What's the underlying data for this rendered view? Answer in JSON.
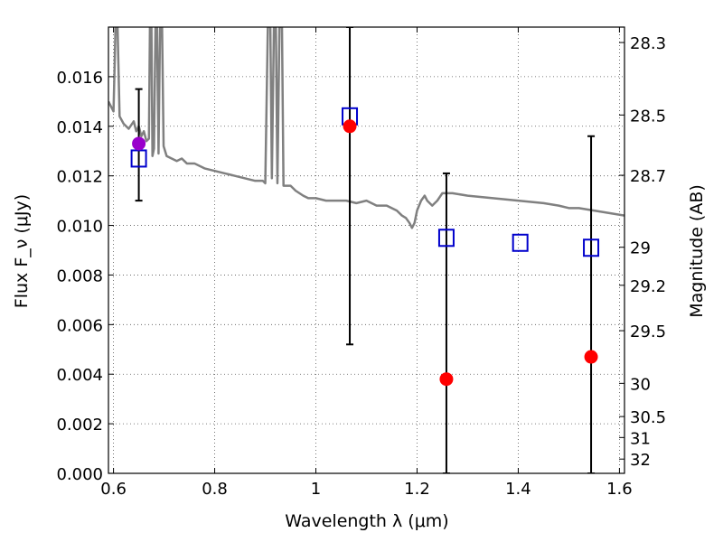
{
  "chart_data": {
    "type": "scatter",
    "xlabel": "Wavelength λ (μm)",
    "ylabel": "Flux F_ν (μJy)",
    "y2label": "Magnitude (AB)",
    "xlim": [
      0.59,
      1.61
    ],
    "ylim": [
      0.0,
      0.018
    ],
    "grid": true,
    "x_ticks": [
      {
        "value": 0.6,
        "label": "0.6"
      },
      {
        "value": 0.8,
        "label": "0.8"
      },
      {
        "value": 1.0,
        "label": "1"
      },
      {
        "value": 1.2,
        "label": "1.2"
      },
      {
        "value": 1.4,
        "label": "1.4"
      },
      {
        "value": 1.6,
        "label": "1.6"
      }
    ],
    "y_ticks": [
      {
        "value": 0.0,
        "label": "0.000"
      },
      {
        "value": 0.002,
        "label": "0.002"
      },
      {
        "value": 0.004,
        "label": "0.004"
      },
      {
        "value": 0.006,
        "label": "0.006"
      },
      {
        "value": 0.008,
        "label": "0.008"
      },
      {
        "value": 0.01,
        "label": "0.010"
      },
      {
        "value": 0.012,
        "label": "0.012"
      },
      {
        "value": 0.014,
        "label": "0.014"
      },
      {
        "value": 0.016,
        "label": "0.016"
      }
    ],
    "y2_ticks": [
      {
        "value": 28.3,
        "label": "28.3"
      },
      {
        "value": 28.5,
        "label": "28.5"
      },
      {
        "value": 28.7,
        "label": "28.7"
      },
      {
        "value": 29.0,
        "label": "29"
      },
      {
        "value": 29.2,
        "label": "29.2"
      },
      {
        "value": 29.5,
        "label": "29.5"
      },
      {
        "value": 30.0,
        "label": "30"
      },
      {
        "value": 30.5,
        "label": "30.5"
      },
      {
        "value": 31.0,
        "label": "31"
      },
      {
        "value": 32.0,
        "label": "32"
      }
    ],
    "sed_model": [
      [
        0.59,
        0.015
      ],
      [
        0.6,
        0.0146
      ],
      [
        0.604,
        0.018
      ],
      [
        0.608,
        0.018
      ],
      [
        0.612,
        0.0144
      ],
      [
        0.62,
        0.0141
      ],
      [
        0.63,
        0.0139
      ],
      [
        0.64,
        0.0142
      ],
      [
        0.645,
        0.0138
      ],
      [
        0.65,
        0.014
      ],
      [
        0.655,
        0.0136
      ],
      [
        0.66,
        0.0138
      ],
      [
        0.665,
        0.0134
      ],
      [
        0.67,
        0.0135
      ],
      [
        0.672,
        0.018
      ],
      [
        0.675,
        0.018
      ],
      [
        0.677,
        0.0128
      ],
      [
        0.68,
        0.0131
      ],
      [
        0.683,
        0.018
      ],
      [
        0.686,
        0.018
      ],
      [
        0.689,
        0.0129
      ],
      [
        0.692,
        0.018
      ],
      [
        0.696,
        0.018
      ],
      [
        0.699,
        0.0132
      ],
      [
        0.705,
        0.0128
      ],
      [
        0.715,
        0.0127
      ],
      [
        0.725,
        0.0126
      ],
      [
        0.735,
        0.0127
      ],
      [
        0.745,
        0.0125
      ],
      [
        0.76,
        0.0125
      ],
      [
        0.78,
        0.0123
      ],
      [
        0.8,
        0.0122
      ],
      [
        0.82,
        0.0121
      ],
      [
        0.84,
        0.012
      ],
      [
        0.86,
        0.0119
      ],
      [
        0.88,
        0.0118
      ],
      [
        0.895,
        0.0118
      ],
      [
        0.9,
        0.0117
      ],
      [
        0.905,
        0.018
      ],
      [
        0.91,
        0.018
      ],
      [
        0.913,
        0.0119
      ],
      [
        0.917,
        0.018
      ],
      [
        0.921,
        0.018
      ],
      [
        0.924,
        0.0117
      ],
      [
        0.928,
        0.018
      ],
      [
        0.933,
        0.018
      ],
      [
        0.936,
        0.0116
      ],
      [
        0.95,
        0.0116
      ],
      [
        0.96,
        0.0114
      ],
      [
        0.975,
        0.0112
      ],
      [
        0.985,
        0.0111
      ],
      [
        1.0,
        0.0111
      ],
      [
        1.02,
        0.011
      ],
      [
        1.04,
        0.011
      ],
      [
        1.06,
        0.011
      ],
      [
        1.08,
        0.0109
      ],
      [
        1.1,
        0.011
      ],
      [
        1.12,
        0.0108
      ],
      [
        1.14,
        0.0108
      ],
      [
        1.16,
        0.0106
      ],
      [
        1.17,
        0.0104
      ],
      [
        1.178,
        0.0103
      ],
      [
        1.185,
        0.0101
      ],
      [
        1.19,
        0.0099
      ],
      [
        1.195,
        0.0101
      ],
      [
        1.2,
        0.0106
      ],
      [
        1.208,
        0.011
      ],
      [
        1.215,
        0.0112
      ],
      [
        1.22,
        0.011
      ],
      [
        1.23,
        0.0108
      ],
      [
        1.24,
        0.011
      ],
      [
        1.25,
        0.0113
      ],
      [
        1.27,
        0.0113
      ],
      [
        1.3,
        0.0112
      ],
      [
        1.35,
        0.0111
      ],
      [
        1.4,
        0.011
      ],
      [
        1.45,
        0.0109
      ],
      [
        1.48,
        0.0108
      ],
      [
        1.5,
        0.0107
      ],
      [
        1.52,
        0.0107
      ],
      [
        1.55,
        0.0106
      ],
      [
        1.58,
        0.0105
      ],
      [
        1.61,
        0.0104
      ]
    ],
    "observed": [
      {
        "x": 0.65,
        "y": 0.0133,
        "color": "#9900cc"
      },
      {
        "x": 1.067,
        "y": 0.014,
        "color": "#ff0000"
      },
      {
        "x": 1.258,
        "y": 0.0038,
        "color": "#ff0000"
      },
      {
        "x": 1.544,
        "y": 0.0047,
        "color": "#ff0000"
      }
    ],
    "model_boxes": [
      {
        "x": 0.65,
        "y": 0.0127,
        "color": "#0000cc"
      },
      {
        "x": 1.067,
        "y": 0.0144,
        "color": "#0000cc"
      },
      {
        "x": 1.258,
        "y": 0.0095,
        "color": "#0000cc"
      },
      {
        "x": 1.404,
        "y": 0.0093,
        "color": "#0000cc"
      },
      {
        "x": 1.544,
        "y": 0.0091,
        "color": "#0000cc"
      }
    ],
    "error_bars": [
      {
        "x": 0.65,
        "low": 0.011,
        "high": 0.0155
      },
      {
        "x": 1.067,
        "low": 0.0052,
        "high": 0.018
      },
      {
        "x": 1.258,
        "low": 0.0,
        "high": 0.0121
      },
      {
        "x": 1.544,
        "low": 0.0,
        "high": 0.0136
      }
    ],
    "colors": {
      "model_line": "#808080",
      "error_bar": "#000000",
      "grid": "#555555"
    }
  }
}
